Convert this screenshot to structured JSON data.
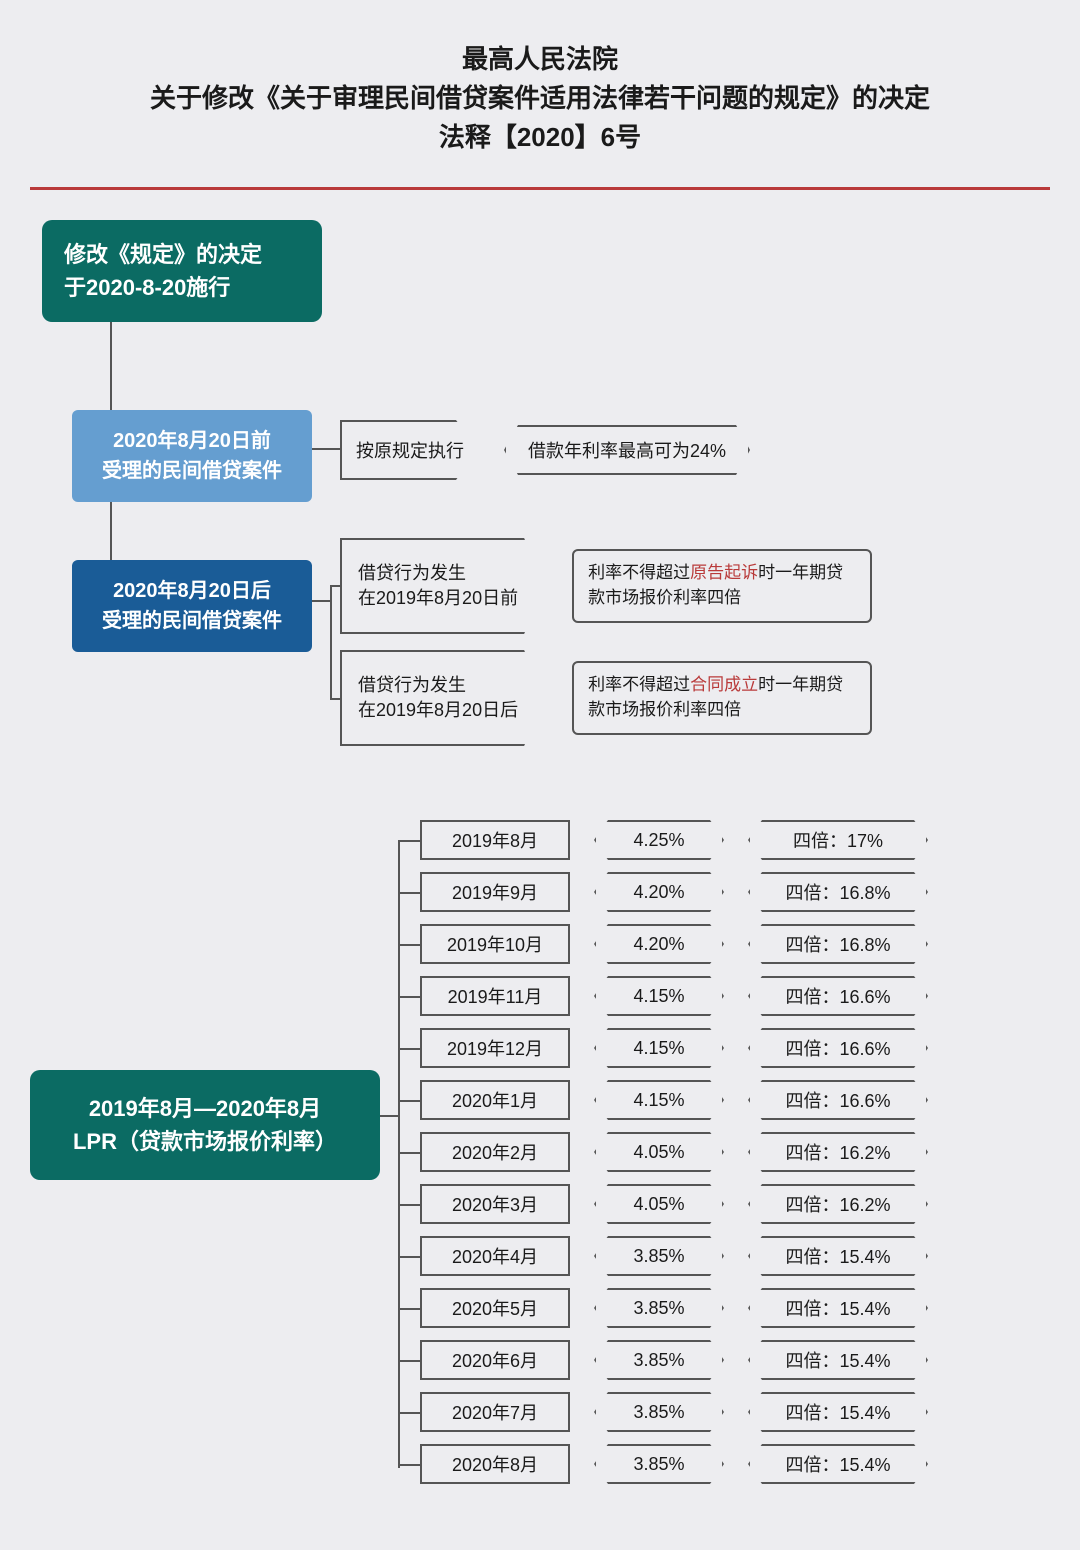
{
  "header": {
    "line1": "最高人民法院",
    "line2": "关于修改《关于审理民间借贷案件适用法律若干问题的规定》的决定",
    "line3": "法释【2020】6号"
  },
  "colors": {
    "background": "#ededf0",
    "teal": "#0b6b63",
    "blue_light": "#659ed0",
    "blue_dark": "#1a5c97",
    "border": "#555555",
    "rule": "#b93a3a",
    "highlight": "#b93a3a",
    "text": "#1a1a1a",
    "white": "#ffffff"
  },
  "root": {
    "line1": "修改《规定》的决定",
    "line2": "于2020-8-20施行"
  },
  "branch1": {
    "label_l1": "2020年8月20日前",
    "label_l2": "受理的民间借贷案件",
    "tag": "按原规定执行",
    "detail": "借款年利率最高可为24%"
  },
  "branch2": {
    "label_l1": "2020年8月20日后",
    "label_l2": "受理的民间借贷案件",
    "sub_a": {
      "tag_l1": "借贷行为发生",
      "tag_l2": "在2019年8月20日前",
      "detail_pre": "利率不得超过",
      "detail_hl": "原告起诉",
      "detail_post": "时一年期贷款市场报价利率四倍"
    },
    "sub_b": {
      "tag_l1": "借贷行为发生",
      "tag_l2": "在2019年8月20日后",
      "detail_pre": "利率不得超过",
      "detail_hl": "合同成立",
      "detail_post": "时一年期贷款市场报价利率四倍"
    }
  },
  "lpr": {
    "title_l1": "2019年8月—2020年8月",
    "title_l2": "LPR（贷款市场报价利率）",
    "mult_prefix": "四倍：",
    "rows": [
      {
        "month": "2019年8月",
        "rate": "4.25%",
        "mult": "17%"
      },
      {
        "month": "2019年9月",
        "rate": "4.20%",
        "mult": "16.8%"
      },
      {
        "month": "2019年10月",
        "rate": "4.20%",
        "mult": "16.8%"
      },
      {
        "month": "2019年11月",
        "rate": "4.15%",
        "mult": "16.6%"
      },
      {
        "month": "2019年12月",
        "rate": "4.15%",
        "mult": "16.6%"
      },
      {
        "month": "2020年1月",
        "rate": "4.15%",
        "mult": "16.6%"
      },
      {
        "month": "2020年2月",
        "rate": "4.05%",
        "mult": "16.2%"
      },
      {
        "month": "2020年3月",
        "rate": "4.05%",
        "mult": "16.2%"
      },
      {
        "month": "2020年4月",
        "rate": "3.85%",
        "mult": "15.4%"
      },
      {
        "month": "2020年5月",
        "rate": "3.85%",
        "mult": "15.4%"
      },
      {
        "month": "2020年6月",
        "rate": "3.85%",
        "mult": "15.4%"
      },
      {
        "month": "2020年7月",
        "rate": "3.85%",
        "mult": "15.4%"
      },
      {
        "month": "2020年8月",
        "rate": "3.85%",
        "mult": "15.4%"
      }
    ]
  }
}
